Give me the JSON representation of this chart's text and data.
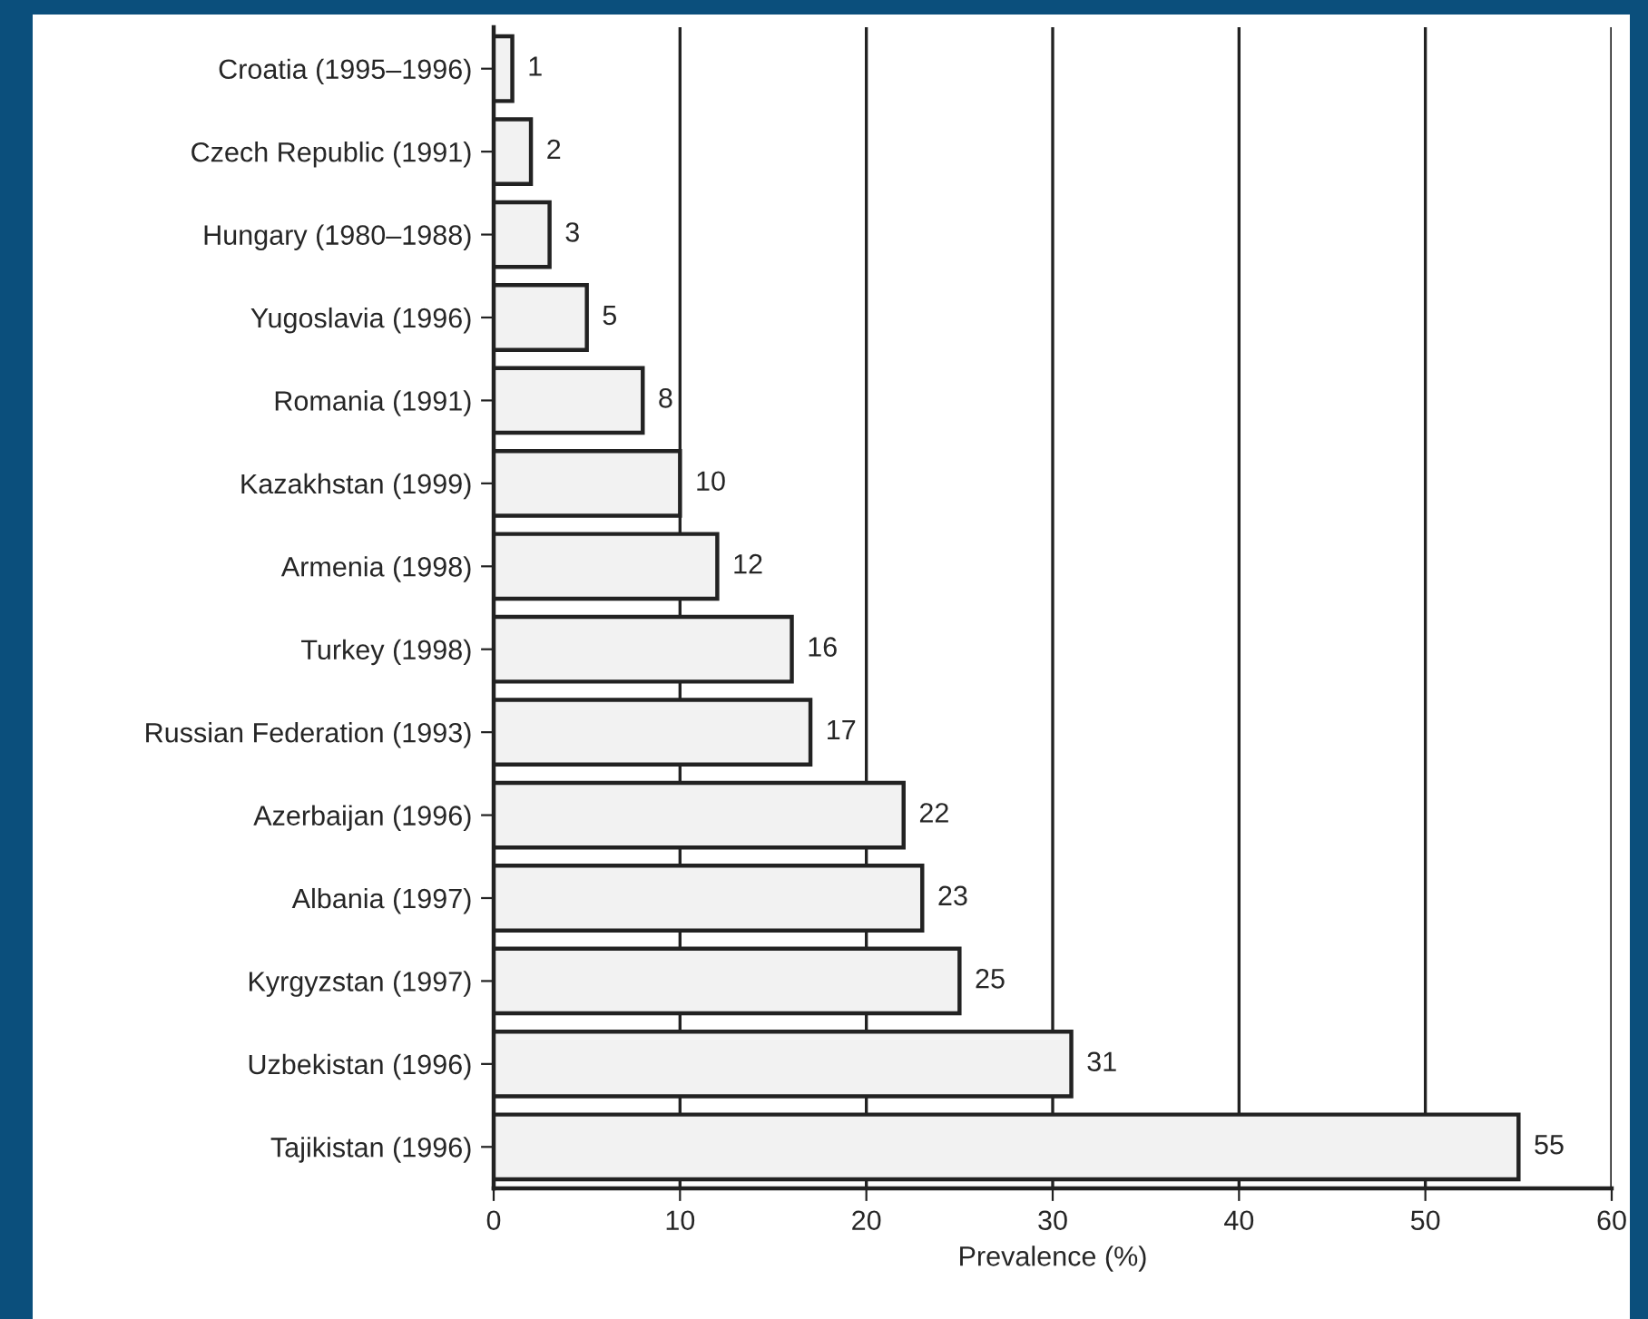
{
  "chart_data": {
    "type": "bar",
    "orientation": "horizontal",
    "xlabel": "Prevalence (%)",
    "categories": [
      "Croatia (1995–1996)",
      "Czech Republic (1991)",
      "Hungary (1980–1988)",
      "Yugoslavia (1996)",
      "Romania (1991)",
      "Kazakhstan (1999)",
      "Armenia (1998)",
      "Turkey (1998)",
      "Russian Federation (1993)",
      "Azerbaijan (1996)",
      "Albania (1997)",
      "Kyrgyzstan (1997)",
      "Uzbekistan (1996)",
      "Tajikistan (1996)"
    ],
    "values": [
      1,
      2,
      3,
      5,
      8,
      10,
      12,
      16,
      17,
      22,
      23,
      25,
      31,
      55
    ],
    "color": "#f2f2f2",
    "data_labels": true,
    "xlim": [
      0,
      60
    ],
    "xticks": [
      0,
      10,
      20,
      30,
      40,
      50,
      60
    ],
    "grid": "x",
    "legend": false
  }
}
